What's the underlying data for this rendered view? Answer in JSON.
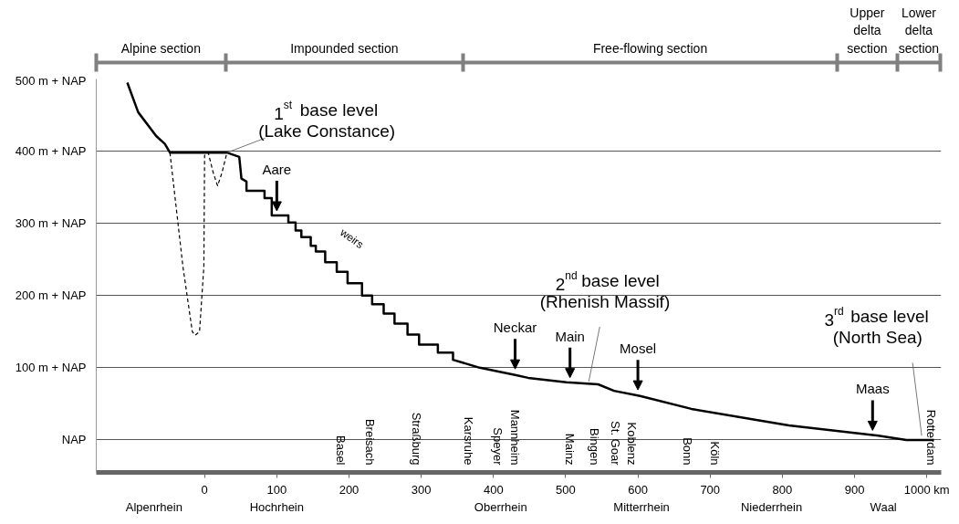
{
  "chart_data": {
    "type": "line",
    "series": [
      {
        "color": "#000000",
        "line_style": "solid",
        "x": [
          -107,
          -92,
          -67,
          -55,
          -48,
          31,
          48,
          51,
          58,
          58,
          83,
          83,
          93,
          93,
          116,
          116,
          126,
          126,
          134,
          134,
          147,
          147,
          154,
          154,
          167,
          167,
          183,
          183,
          198,
          198,
          218,
          218,
          232,
          232,
          248,
          248,
          263,
          263,
          281,
          281,
          297,
          297,
          323,
          323,
          344,
          344,
          381,
          430,
          448,
          501,
          545,
          567,
          603,
          674,
          809,
          933,
          972,
          1010
        ],
        "values": [
          495,
          454,
          421,
          410,
          398,
          398,
          392,
          362,
          358,
          345,
          345,
          335,
          335,
          311,
          311,
          301,
          301,
          290,
          290,
          281,
          281,
          269,
          269,
          261,
          261,
          246,
          246,
          233,
          233,
          217,
          217,
          200,
          200,
          188,
          188,
          175,
          175,
          161,
          161,
          146,
          146,
          132,
          132,
          121,
          121,
          111,
          100,
          90,
          86,
          80,
          77,
          68,
          61,
          43,
          20,
          6,
          0,
          0
        ]
      },
      {
        "color": "#000000",
        "line_style": "dashed",
        "x": [
          -48,
          -30,
          -17,
          -13,
          -7,
          -1,
          0,
          5,
          12,
          18,
          24,
          31
        ],
        "values": [
          398,
          240,
          150,
          145,
          150,
          240,
          394,
          398,
          370,
          352,
          370,
          398
        ]
      }
    ],
    "xlim": [
      -150,
      1020
    ],
    "xticks": [
      0,
      100,
      200,
      300,
      400,
      500,
      600,
      700,
      800,
      900,
      {
        "value": 1000,
        "label": "1000 km"
      }
    ],
    "ylim": [
      -45,
      500
    ],
    "yticks": [
      {
        "value": 0,
        "label": "NAP"
      },
      {
        "value": 100,
        "label": "100 m + NAP"
      },
      {
        "value": 200,
        "label": "200 m + NAP"
      },
      {
        "value": 300,
        "label": "300 m + NAP"
      },
      {
        "value": 400,
        "label": "400 m + NAP"
      },
      {
        "value": 500,
        "label": "500 m + NAP"
      }
    ],
    "grid": "y",
    "annotations": [
      "Alpine section",
      "Impounded section",
      "Free-flowing section",
      "Upper\ndelta\nsection",
      "Lower\ndelta\nsection",
      "Alpenrhein",
      "Hochrhein",
      "Oberrhein",
      "Mitterrhein",
      "Niederrhein",
      "Waal",
      "Basel",
      "Breisach",
      "Straßburg",
      "Karsruhe",
      "Speyer",
      "Mannheim",
      "Mainz",
      "Bingen",
      "St. Goar",
      "Koblenz",
      "Bonn",
      "Köln",
      "Rotterdam",
      "weirs",
      {
        "text": "Aare",
        "x": 100,
        "y": 311
      },
      {
        "text": "Neckar",
        "x": 430,
        "y": 92
      },
      {
        "text": "Main",
        "x": 506,
        "y": 80
      },
      {
        "text": "Mosel",
        "x": 600,
        "y": 63
      },
      {
        "text": "Maas",
        "x": 925,
        "y": 7
      },
      {
        "text": "1$^{st}$ base level\n(Lake Constance)",
        "x": 31,
        "y": 398
      },
      {
        "text": "2$^{nd}$ base level\n(Rhenish Massif)",
        "x": 532,
        "y": 81
      },
      {
        "text": "3$^{rd}$ base level\n(North Sea)",
        "x": 993,
        "y": 6
      }
    ]
  }
}
